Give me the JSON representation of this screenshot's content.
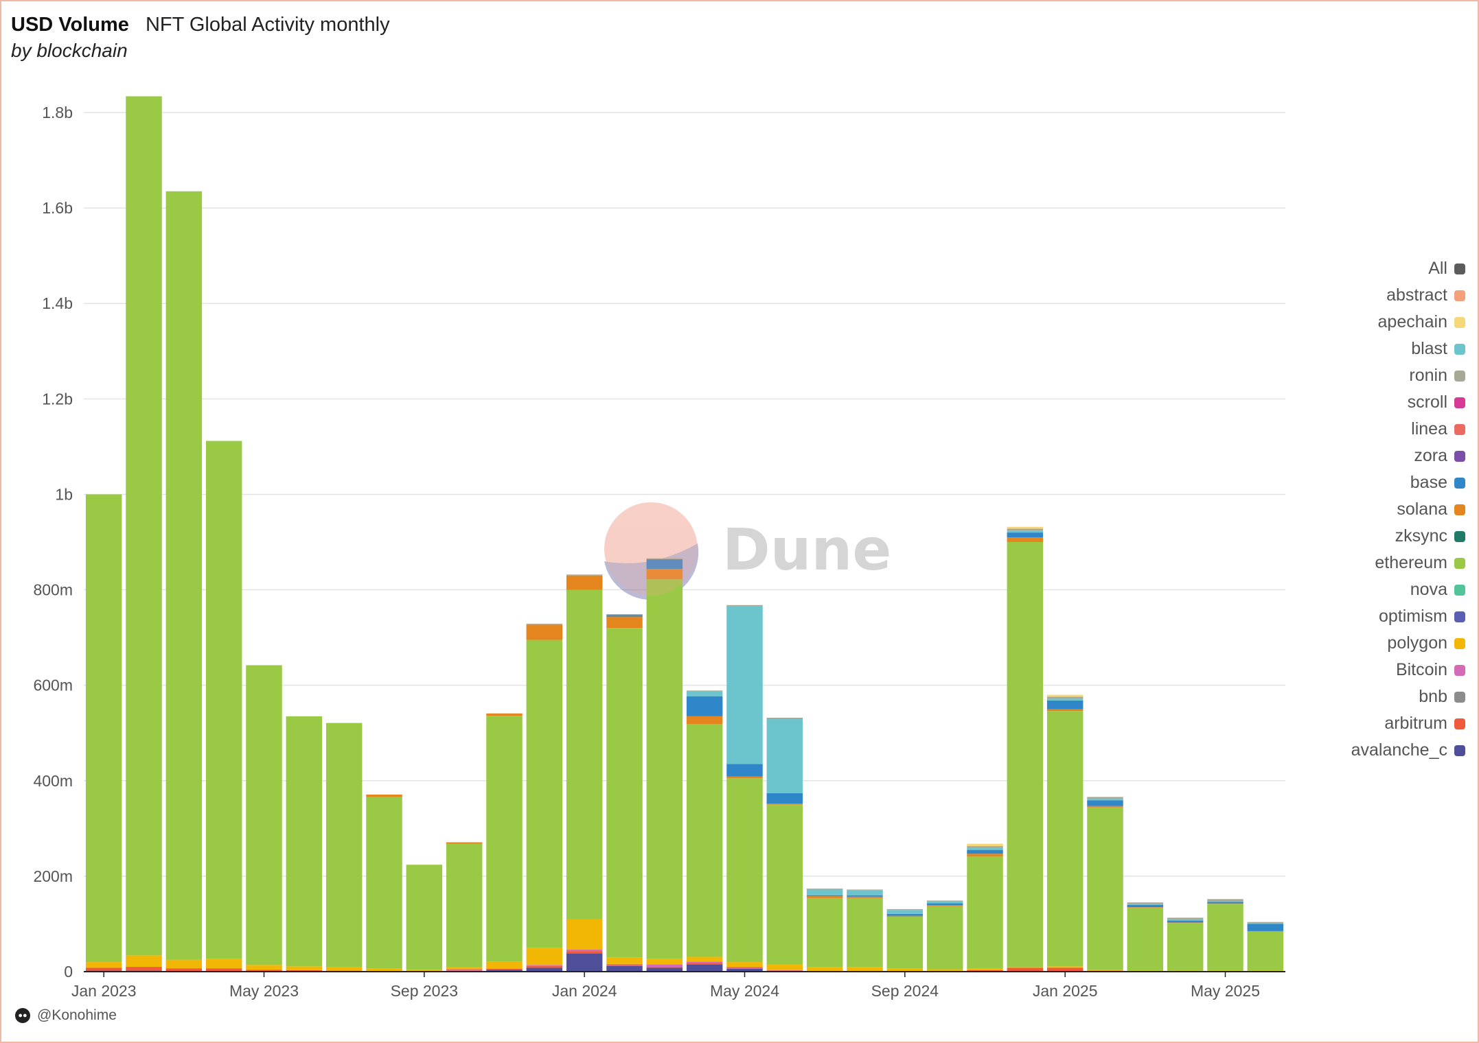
{
  "header": {
    "title": "USD Volume",
    "subtitle_inline": "NFT Global Activity monthly",
    "subtitle": "by blockchain"
  },
  "watermark": {
    "text": "Dune"
  },
  "footer": {
    "author": "@Konohime"
  },
  "legend": {
    "items": [
      {
        "label": "All",
        "color": "#5c5c5c"
      },
      {
        "label": "abstract",
        "color": "#f4a07a"
      },
      {
        "label": "apechain",
        "color": "#f6d77a"
      },
      {
        "label": "blast",
        "color": "#6cc4cc"
      },
      {
        "label": "ronin",
        "color": "#a8a897"
      },
      {
        "label": "scroll",
        "color": "#d63a94"
      },
      {
        "label": "linea",
        "color": "#ea6b62"
      },
      {
        "label": "zora",
        "color": "#7b4fa8"
      },
      {
        "label": "base",
        "color": "#2f86c8"
      },
      {
        "label": "solana",
        "color": "#e5851d"
      },
      {
        "label": "zksync",
        "color": "#1f7a68"
      },
      {
        "label": "ethereum",
        "color": "#9aca45"
      },
      {
        "label": "nova",
        "color": "#52c49a"
      },
      {
        "label": "optimism",
        "color": "#5b5fb4"
      },
      {
        "label": "polygon",
        "color": "#f2b705"
      },
      {
        "label": "Bitcoin",
        "color": "#d56bb8"
      },
      {
        "label": "bnb",
        "color": "#8c8c8c"
      },
      {
        "label": "arbitrum",
        "color": "#ef5a3c"
      },
      {
        "label": "avalanche_c",
        "color": "#4f4f99"
      }
    ]
  },
  "chart_data": {
    "type": "bar",
    "stacked": true,
    "title": "USD Volume",
    "subtitle": "NFT Global Activity monthly",
    "xlabel": "",
    "ylabel": "",
    "ylim": [
      0,
      1800000000
    ],
    "y_ticks": [
      {
        "value": 0,
        "label": "0"
      },
      {
        "value": 200000000,
        "label": "200m"
      },
      {
        "value": 400000000,
        "label": "400m"
      },
      {
        "value": 600000000,
        "label": "600m"
      },
      {
        "value": 800000000,
        "label": "800m"
      },
      {
        "value": 1000000000,
        "label": "1b"
      },
      {
        "value": 1200000000,
        "label": "1.2b"
      },
      {
        "value": 1400000000,
        "label": "1.4b"
      },
      {
        "value": 1600000000,
        "label": "1.6b"
      },
      {
        "value": 1800000000,
        "label": "1.8b"
      }
    ],
    "x_ticks": [
      {
        "index": 0,
        "label": "Jan 2023"
      },
      {
        "index": 4,
        "label": "May 2023"
      },
      {
        "index": 8,
        "label": "Sep 2023"
      },
      {
        "index": 12,
        "label": "Jan 2024"
      },
      {
        "index": 16,
        "label": "May 2024"
      },
      {
        "index": 20,
        "label": "Sep 2024"
      },
      {
        "index": 24,
        "label": "Jan 2025"
      },
      {
        "index": 28,
        "label": "May 2025"
      }
    ],
    "grid": true,
    "legend_position": "right",
    "categories": [
      "2023-01",
      "2023-02",
      "2023-03",
      "2023-04",
      "2023-05",
      "2023-06",
      "2023-07",
      "2023-08",
      "2023-09",
      "2023-10",
      "2023-11",
      "2023-12",
      "2024-01",
      "2024-02",
      "2024-03",
      "2024-04",
      "2024-05",
      "2024-06",
      "2024-07",
      "2024-08",
      "2024-09",
      "2024-10",
      "2024-11",
      "2024-12",
      "2025-01",
      "2025-02",
      "2025-03",
      "2025-04",
      "2025-05",
      "2025-06"
    ],
    "series": [
      {
        "name": "avalanche_c",
        "color": "#4f4f99",
        "values": [
          2,
          2,
          1,
          1,
          1,
          1,
          0,
          0,
          0,
          1,
          4,
          8,
          38,
          12,
          8,
          15,
          6,
          1,
          0,
          0,
          0,
          0,
          0,
          0,
          0,
          0,
          0,
          0,
          0,
          0
        ]
      },
      {
        "name": "arbitrum",
        "color": "#ef5a3c",
        "values": [
          6,
          8,
          6,
          6,
          3,
          2,
          2,
          1,
          1,
          1,
          2,
          4,
          5,
          2,
          2,
          3,
          2,
          1,
          1,
          1,
          1,
          1,
          3,
          8,
          8,
          2,
          1,
          1,
          1,
          1
        ]
      },
      {
        "name": "Bitcoin",
        "color": "#d56bb8",
        "values": [
          0,
          0,
          0,
          0,
          0,
          0,
          0,
          0,
          0,
          3,
          1,
          2,
          3,
          2,
          5,
          3,
          2,
          1,
          0,
          0,
          0,
          0,
          0,
          0,
          0,
          0,
          0,
          0,
          0,
          0
        ]
      },
      {
        "name": "polygon",
        "color": "#f2b705",
        "values": [
          12,
          24,
          18,
          20,
          10,
          8,
          7,
          5,
          3,
          5,
          14,
          36,
          64,
          14,
          12,
          10,
          10,
          12,
          8,
          8,
          6,
          4,
          3,
          2,
          3,
          2,
          1,
          1,
          1,
          1
        ]
      },
      {
        "name": "ethereum",
        "color": "#9aca45",
        "values": [
          980,
          1800,
          1610,
          1085,
          628,
          524,
          512,
          360,
          220,
          258,
          515,
          645,
          690,
          690,
          795,
          488,
          385,
          335,
          145,
          145,
          108,
          132,
          235,
          890,
          535,
          340,
          132,
          100,
          140,
          82
        ]
      },
      {
        "name": "solana",
        "color": "#e5851d",
        "values": [
          0,
          0,
          0,
          0,
          0,
          0,
          0,
          5,
          0,
          3,
          5,
          32,
          30,
          24,
          22,
          16,
          4,
          2,
          4,
          3,
          2,
          2,
          6,
          10,
          4,
          3,
          1,
          1,
          1,
          1
        ]
      },
      {
        "name": "base",
        "color": "#2f86c8",
        "values": [
          0,
          0,
          0,
          0,
          0,
          0,
          0,
          0,
          0,
          0,
          0,
          0,
          0,
          3,
          20,
          42,
          26,
          22,
          2,
          3,
          4,
          4,
          8,
          10,
          18,
          12,
          5,
          4,
          3,
          15
        ]
      },
      {
        "name": "blast",
        "color": "#6cc4cc",
        "values": [
          0,
          0,
          0,
          0,
          0,
          0,
          0,
          0,
          0,
          0,
          0,
          0,
          0,
          0,
          0,
          10,
          330,
          155,
          12,
          10,
          8,
          4,
          4,
          4,
          4,
          3,
          2,
          2,
          2,
          2
        ]
      },
      {
        "name": "ronin",
        "color": "#a8a897",
        "values": [
          0,
          0,
          0,
          0,
          0,
          0,
          0,
          0,
          0,
          0,
          0,
          2,
          2,
          2,
          2,
          2,
          3,
          3,
          2,
          2,
          2,
          2,
          4,
          4,
          4,
          4,
          3,
          4,
          4,
          2
        ]
      },
      {
        "name": "apechain",
        "color": "#f6d77a",
        "values": [
          0,
          0,
          0,
          0,
          0,
          0,
          0,
          0,
          0,
          0,
          0,
          0,
          0,
          0,
          0,
          0,
          0,
          0,
          0,
          0,
          0,
          0,
          5,
          4,
          4,
          0,
          0,
          0,
          0,
          0
        ]
      }
    ],
    "units": "USD millions"
  }
}
